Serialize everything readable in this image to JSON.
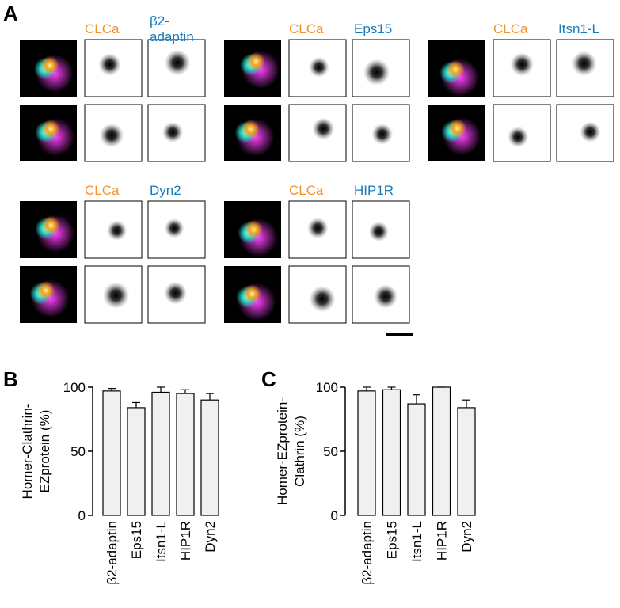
{
  "panel_labels": [
    "A",
    "B",
    "C"
  ],
  "panel_a": {
    "groups": [
      {
        "labels": [
          "CLCa",
          "β2-",
          "adaptin"
        ]
      },
      {
        "labels": [
          "CLCa",
          "Eps15"
        ]
      },
      {
        "labels": [
          "CLCa",
          "Itsn1-L"
        ]
      },
      {
        "labels": [
          "CLCa",
          "Dyn2"
        ]
      },
      {
        "labels": [
          "CLCa",
          "HIP1R"
        ]
      }
    ]
  },
  "chart_data": [
    {
      "type": "bar",
      "ylabel": [
        "Homer-Clathrin-",
        "EZprotein (%)"
      ],
      "categories": [
        "β2-adaptin",
        "Eps15",
        "Itsn1-L",
        "HIP1R",
        "Dyn2"
      ],
      "values": [
        97,
        84,
        96,
        95,
        90
      ],
      "errors": [
        2,
        4,
        4,
        3,
        5
      ],
      "color": "#f0f0f0",
      "ylim": [
        0,
        100
      ],
      "yticks": [
        0,
        50,
        100
      ]
    },
    {
      "type": "bar",
      "ylabel": [
        "Homer-EZprotein-",
        "Clathrin (%)"
      ],
      "categories": [
        "β2-adaptin",
        "Eps15",
        "Itsn1-L",
        "HIP1R",
        "Dyn2"
      ],
      "values": [
        97,
        98,
        87,
        100,
        84
      ],
      "errors": [
        3,
        2,
        7,
        0,
        6
      ],
      "color": "#f0f0f0",
      "ylim": [
        0,
        100
      ],
      "yticks": [
        0,
        50,
        100
      ]
    }
  ]
}
